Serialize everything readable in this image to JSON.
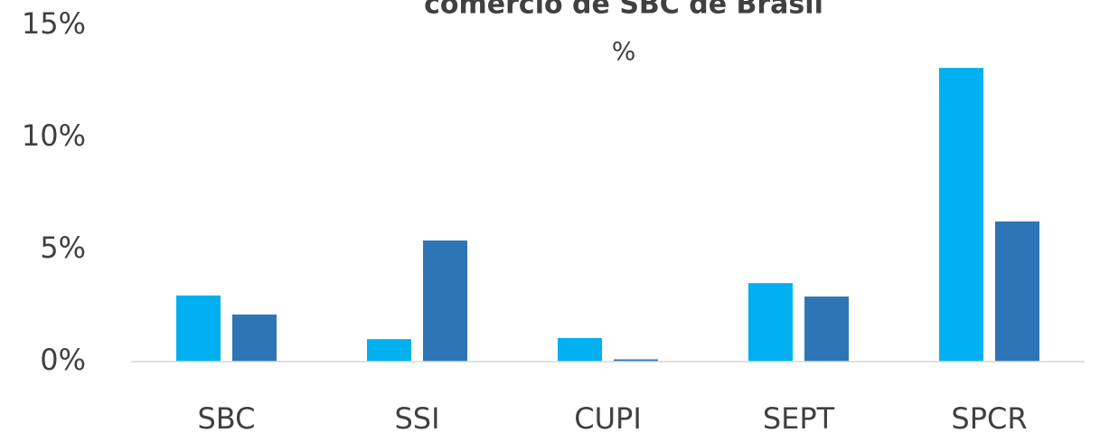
{
  "chart_data": {
    "type": "bar",
    "title": "comercio de SBC de Brasil",
    "subtitle": "%",
    "categories": [
      "SBC",
      "SSI",
      "CUPI",
      "SEPT",
      "SPCR"
    ],
    "series": [
      {
        "color": "#00b0f0",
        "values": [
          2.95,
          1.0,
          1.05,
          3.5,
          13.1
        ]
      },
      {
        "color": "#2e75b6",
        "values": [
          2.1,
          5.4,
          0.1,
          2.9,
          6.25
        ]
      }
    ],
    "ylim": [
      0,
      15
    ],
    "yticks": [
      {
        "value": 0,
        "label": "0%"
      },
      {
        "value": 5,
        "label": "5%"
      },
      {
        "value": 10,
        "label": "10%"
      },
      {
        "value": 15,
        "label": "15%"
      }
    ],
    "grid": false
  }
}
